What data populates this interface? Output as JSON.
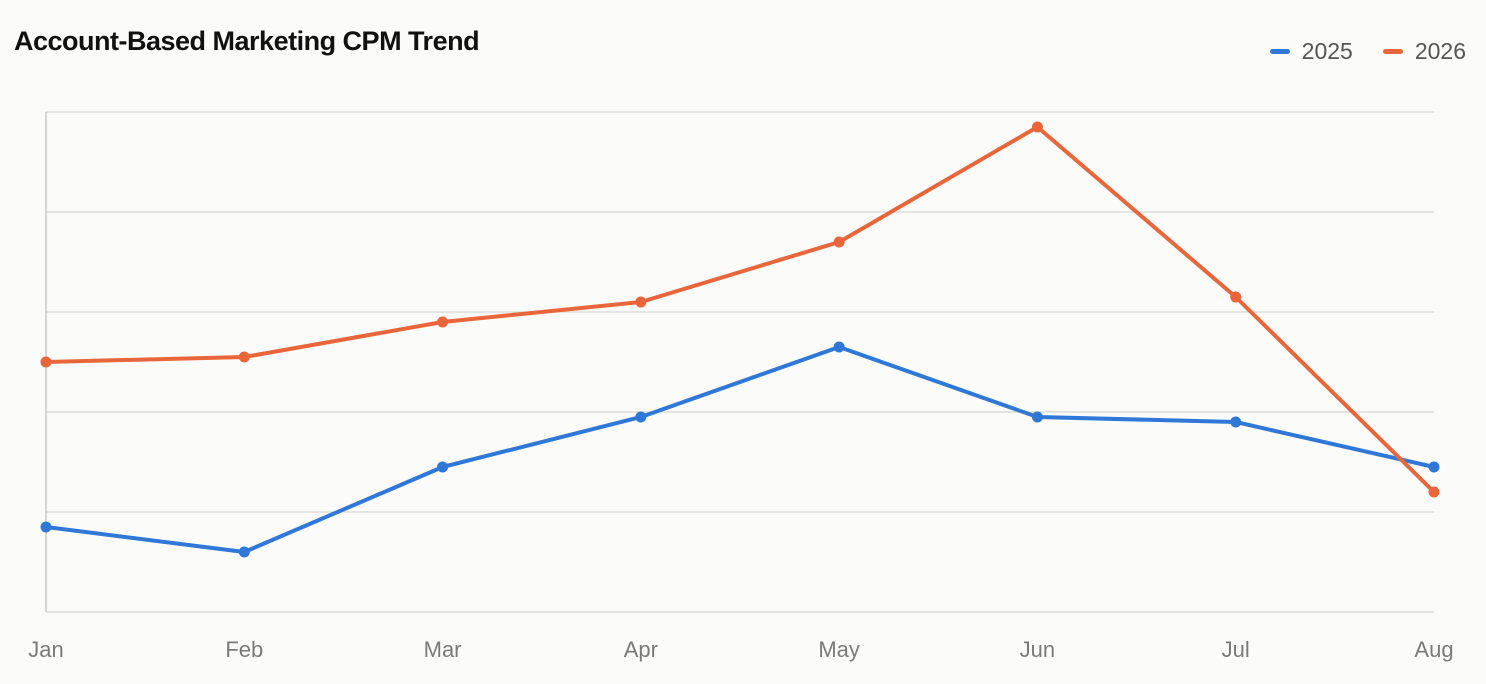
{
  "chart_data": {
    "type": "line",
    "title": "Account-Based Marketing CPM Trend",
    "xlabel": "",
    "ylabel": "",
    "categories": [
      "Jan",
      "Feb",
      "Mar",
      "Apr",
      "May",
      "Jun",
      "Jul",
      "Aug"
    ],
    "series": [
      {
        "name": "2025",
        "color": "#2f78d8",
        "values": [
          1.7,
          1.2,
          2.9,
          3.9,
          5.3,
          3.9,
          3.8,
          2.9
        ]
      },
      {
        "name": "2026",
        "color": "#e8663a",
        "values": [
          5.0,
          5.1,
          5.8,
          6.2,
          7.4,
          9.7,
          6.3,
          2.4
        ]
      }
    ],
    "ylim": [
      0,
      10
    ],
    "y_gridlines": [
      0,
      2,
      4,
      6,
      8,
      10
    ],
    "grid": true,
    "legend_position": "top-right"
  }
}
